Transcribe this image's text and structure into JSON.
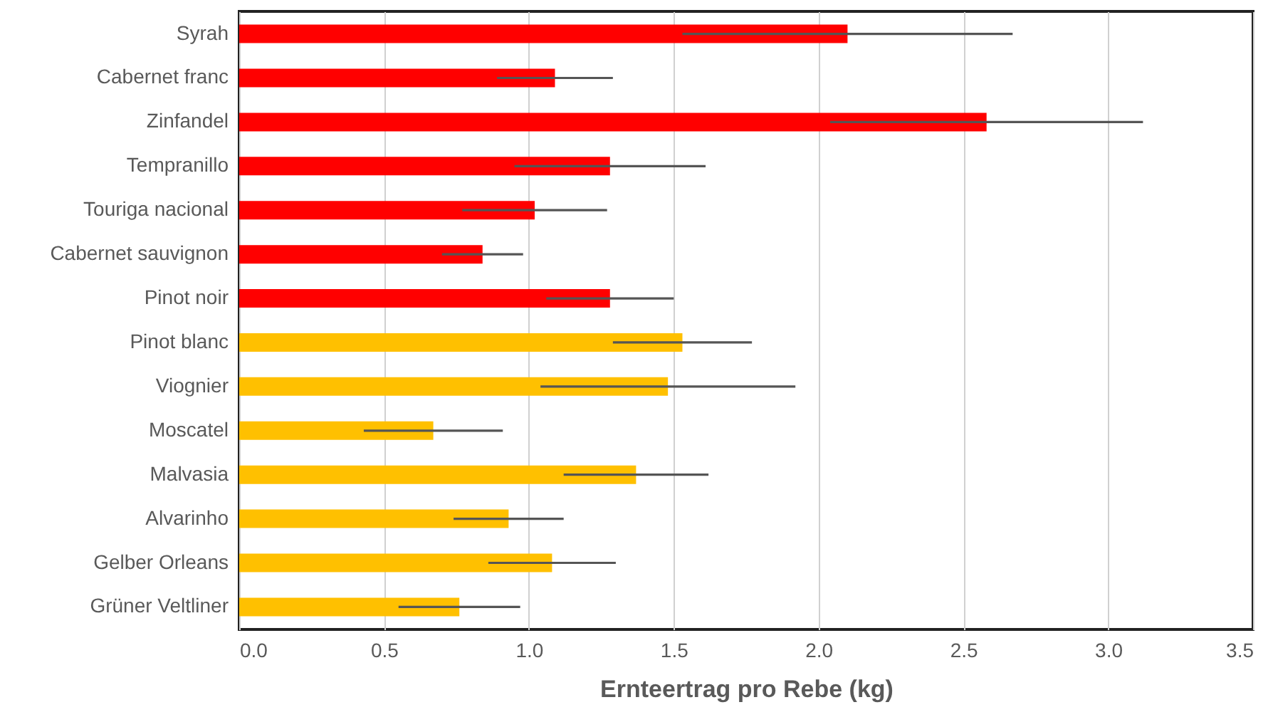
{
  "chart_data": {
    "type": "bar",
    "orientation": "horizontal",
    "xlabel": "Ernteertrag pro Rebe (kg)",
    "categories": [
      "Syrah",
      "Cabernet franc",
      "Zinfandel",
      "Tempranillo",
      "Touriga nacional",
      "Cabernet sauvignon",
      "Pinot noir",
      "Pinot blanc",
      "Viognier",
      "Moscatel",
      "Malvasia",
      "Alvarinho",
      "Gelber Orleans",
      "Grüner Veltliner"
    ],
    "values": [
      2.1,
      1.09,
      2.58,
      1.28,
      1.02,
      0.84,
      1.28,
      1.53,
      1.48,
      0.67,
      1.37,
      0.93,
      1.08,
      0.76
    ],
    "errors": [
      0.57,
      0.2,
      0.54,
      0.33,
      0.25,
      0.14,
      0.22,
      0.24,
      0.44,
      0.24,
      0.25,
      0.19,
      0.22,
      0.21
    ],
    "colors": [
      "#ff0000",
      "#ff0000",
      "#ff0000",
      "#ff0000",
      "#ff0000",
      "#ff0000",
      "#ff0000",
      "#ffc000",
      "#ffc000",
      "#ffc000",
      "#ffc000",
      "#ffc000",
      "#ffc000",
      "#ffc000"
    ],
    "xlim": [
      0,
      3.5
    ],
    "xticks": [
      {
        "value": 0,
        "label": "0.0"
      },
      0.5,
      {
        "value": 1,
        "label": "1.0"
      },
      1.5,
      {
        "value": 2,
        "label": "2.0"
      },
      2.5,
      {
        "value": 3,
        "label": "3.0"
      },
      3.5
    ],
    "grid": "x"
  }
}
